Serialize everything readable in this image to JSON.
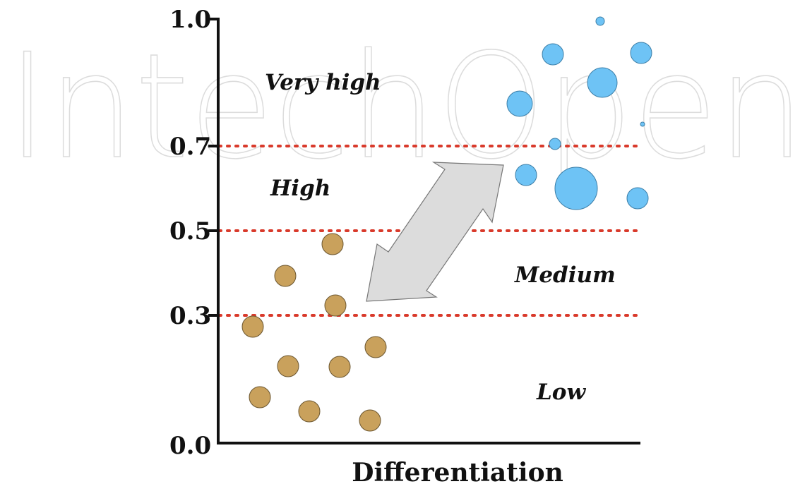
{
  "watermark": "IntechOpen",
  "y_axis": {
    "ticks": [
      {
        "value": 1.0,
        "label": "1.0"
      },
      {
        "value": 0.7,
        "label": "0.7"
      },
      {
        "value": 0.5,
        "label": "0.5"
      },
      {
        "value": 0.3,
        "label": "0.3"
      },
      {
        "value": 0.0,
        "label": "0.0"
      }
    ],
    "threshold_values": [
      0.7,
      0.5,
      0.3
    ]
  },
  "x_axis": {
    "title": "Differentiation"
  },
  "zones": [
    {
      "id": "very-high",
      "label": "Very high"
    },
    {
      "id": "high",
      "label": "High"
    },
    {
      "id": "medium",
      "label": "Medium"
    },
    {
      "id": "low",
      "label": "Low"
    }
  ],
  "colors": {
    "low_cluster": "#c9a15c",
    "high_cluster": "#6ec3f5",
    "threshold_line": "#d93a2b",
    "arrow_fill": "#dcdcdc",
    "axis": "#111111"
  }
}
